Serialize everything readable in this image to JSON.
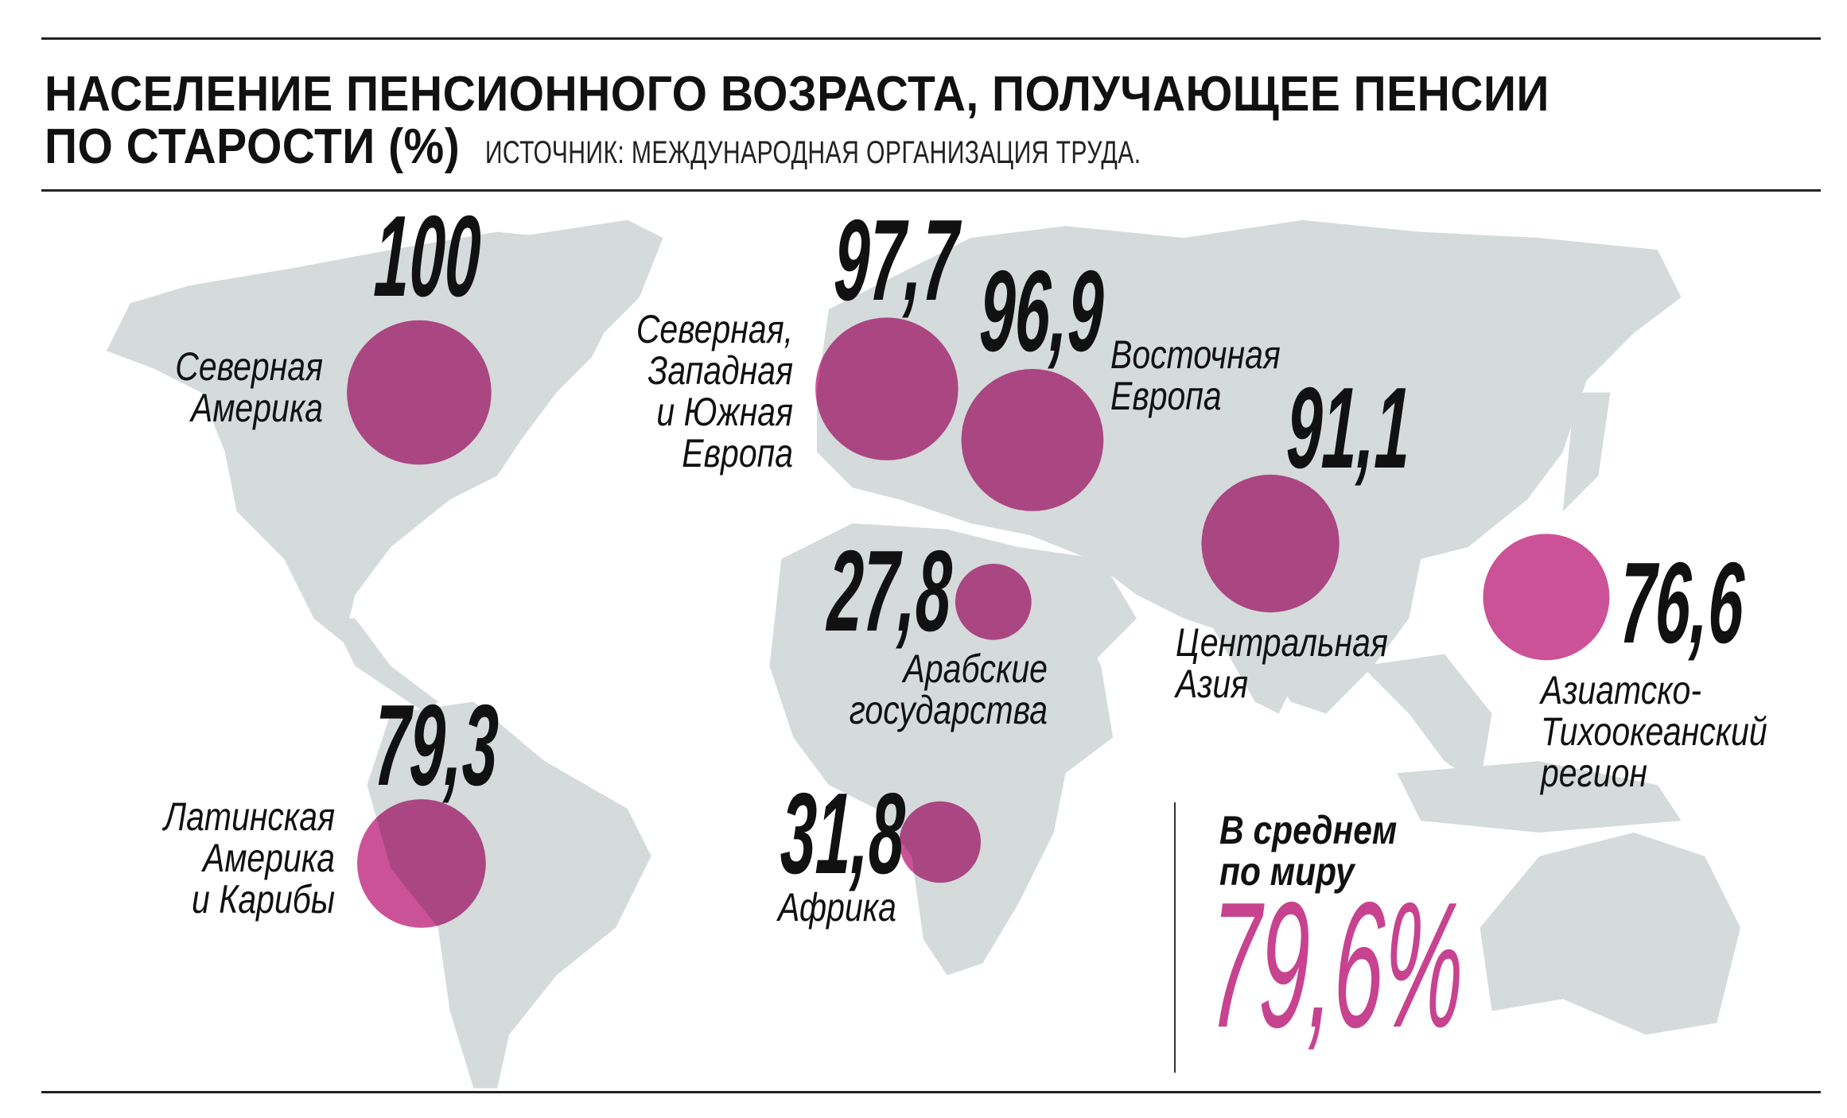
{
  "chart_data": {
    "type": "bubble-map",
    "title": "НАСЕЛЕНИЕ ПЕНСИОННОГО ВОЗРАСТА, ПОЛУЧАЮЩЕЕ ПЕНСИИ ПО СТАРОСТИ (%)",
    "title_line1": "НАСЕЛЕНИЕ ПЕНСИОННОГО ВОЗРАСТА, ПОЛУЧАЮЩЕЕ ПЕНСИИ",
    "title_line2": "ПО СТАРОСТИ (%)",
    "source": "ИСТОЧНИК: МЕЖДУНАРОДНАЯ ОРГАНИЗАЦИЯ ТРУДА.",
    "bubble_color": "#c8438f",
    "land_color": "#d5dada",
    "regions": [
      {
        "id": "na",
        "value": 100,
        "value_label": "100",
        "label": [
          "Северная",
          "Америка"
        ]
      },
      {
        "id": "we",
        "value": 97.7,
        "value_label": "97,7",
        "label": [
          "Северная,",
          "Западная",
          "и Южная",
          "Европа"
        ]
      },
      {
        "id": "ee",
        "value": 96.9,
        "value_label": "96,9",
        "label": [
          "Восточная",
          "Европа"
        ]
      },
      {
        "id": "ca",
        "value": 91.1,
        "value_label": "91,1",
        "label": [
          "Центральная",
          "Азия"
        ]
      },
      {
        "id": "ap",
        "value": 76.6,
        "value_label": "76,6",
        "label": [
          "Азиатско-",
          "Тихоокеанский",
          "регион"
        ]
      },
      {
        "id": "ar",
        "value": 27.8,
        "value_label": "27,8",
        "label": [
          "Арабские",
          "государства"
        ]
      },
      {
        "id": "la",
        "value": 79.3,
        "value_label": "79,3",
        "label": [
          "Латинская",
          "Америка",
          "и Карибы"
        ]
      },
      {
        "id": "af",
        "value": 31.8,
        "value_label": "31,8",
        "label": [
          "Африка"
        ]
      }
    ],
    "world_average": {
      "label": [
        "В среднем",
        "по миру"
      ],
      "value": 79.6,
      "value_label": "79,6%"
    }
  }
}
